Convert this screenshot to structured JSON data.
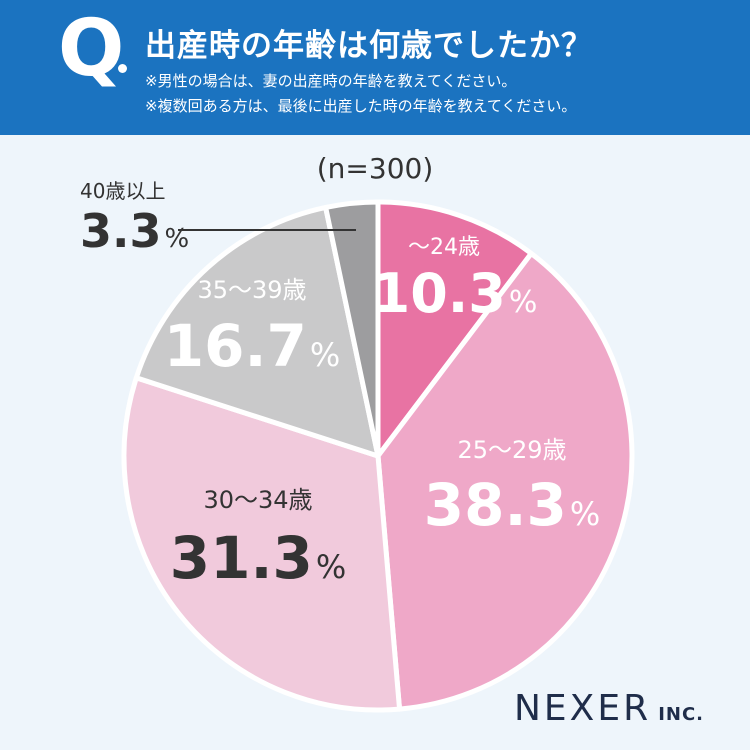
{
  "header": {
    "q": "Q",
    "title": "出産時の年齢は何歳でしたか？",
    "note1": "※男性の場合は、妻の出産時の年齢を教えてください。",
    "note2": "※複数回ある方は、最後に出産した時の年齢を教えてください。"
  },
  "chart_data": {
    "type": "pie",
    "title": "出産時の年齢は何歳でしたか？",
    "sample": "(n=300)",
    "unit": "%",
    "slices": [
      {
        "label": "～24歳",
        "value": 10.3,
        "color": "#e873a3"
      },
      {
        "label": "25～29歳",
        "value": 38.3,
        "color": "#efa8c8"
      },
      {
        "label": "30～34歳",
        "value": 31.3,
        "color": "#f1cadc"
      },
      {
        "label": "35～39歳",
        "value": 16.7,
        "color": "#c9c9ca"
      },
      {
        "label": "40歳以上",
        "value": 3.3,
        "color": "#9d9d9f"
      }
    ]
  },
  "logo": {
    "main": "NEXER",
    "sub": "INC."
  }
}
